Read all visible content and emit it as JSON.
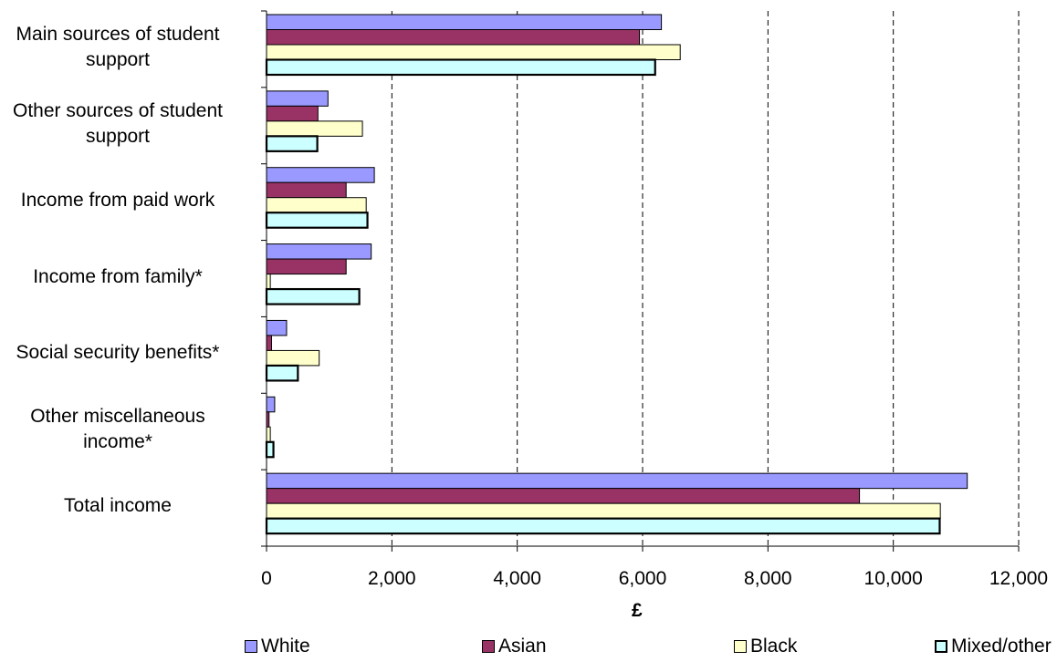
{
  "chart_data": {
    "type": "bar",
    "orientation": "horizontal",
    "categories": [
      "Main sources of student support",
      "Other sources of student support",
      "Income from paid work",
      "Income from family*",
      "Social security benefits*",
      "Other miscellaneous income*",
      "Total income"
    ],
    "category_lines": [
      [
        "Main sources of student",
        "support"
      ],
      [
        "Other sources of student",
        "support"
      ],
      [
        "Income from paid work"
      ],
      [
        "Income from family*"
      ],
      [
        "Social security benefits*"
      ],
      [
        "Other miscellaneous",
        "income*"
      ],
      [
        "Total income"
      ]
    ],
    "series": [
      {
        "name": "White",
        "color": "#9999ff",
        "values": [
          6300,
          980,
          1720,
          1670,
          320,
          130,
          11180
        ]
      },
      {
        "name": "Asian",
        "color": "#993366",
        "values": [
          5950,
          820,
          1270,
          1270,
          80,
          40,
          9460
        ]
      },
      {
        "name": "Black",
        "color": "#ffffcc",
        "values": [
          6600,
          1530,
          1590,
          60,
          840,
          60,
          10750
        ]
      },
      {
        "name": "Mixed/other",
        "color": "#ccffff",
        "values": [
          6200,
          810,
          1610,
          1480,
          500,
          110,
          10740
        ]
      }
    ],
    "xlim": [
      0,
      12000
    ],
    "xticks": [
      0,
      2000,
      4000,
      6000,
      8000,
      10000,
      12000
    ],
    "xtick_labels": [
      "0",
      "2,000",
      "4,000",
      "6,000",
      "8,000",
      "10,000",
      "12,000"
    ],
    "xlabel": "£",
    "ylabel": "",
    "title": "",
    "grid": "vertical dashed",
    "legend": "bottom"
  }
}
